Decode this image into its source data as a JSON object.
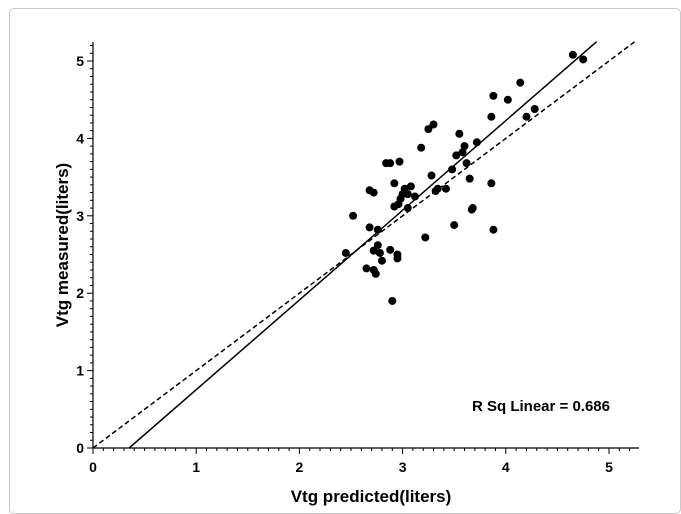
{
  "chart_data": {
    "type": "scatter",
    "xlabel": "Vtg predicted(liters)",
    "ylabel": "Vtg measured(liters)",
    "xlim": [
      0,
      5.25
    ],
    "ylim": [
      0,
      5.25
    ],
    "xticks": [
      "0",
      "1",
      "2",
      "3",
      "4",
      "5"
    ],
    "yticks": [
      "0",
      "1",
      "2",
      "3",
      "4",
      "5"
    ],
    "grid": false,
    "annotation": "R Sq Linear = 0.686",
    "colors": {
      "points": "#000000",
      "lines": "#000000"
    },
    "points": [
      [
        2.45,
        2.52
      ],
      [
        2.52,
        3.0
      ],
      [
        2.65,
        2.32
      ],
      [
        2.68,
        2.85
      ],
      [
        2.68,
        3.33
      ],
      [
        2.72,
        3.3
      ],
      [
        2.72,
        2.3
      ],
      [
        2.72,
        2.55
      ],
      [
        2.74,
        2.25
      ],
      [
        2.76,
        2.82
      ],
      [
        2.76,
        2.62
      ],
      [
        2.78,
        2.52
      ],
      [
        2.8,
        2.42
      ],
      [
        2.84,
        3.68
      ],
      [
        2.88,
        3.68
      ],
      [
        2.88,
        2.56
      ],
      [
        2.9,
        1.9
      ],
      [
        2.92,
        3.42
      ],
      [
        2.92,
        3.12
      ],
      [
        2.95,
        2.45
      ],
      [
        2.95,
        2.5
      ],
      [
        2.96,
        3.15
      ],
      [
        2.97,
        3.7
      ],
      [
        2.98,
        3.22
      ],
      [
        3.0,
        3.28
      ],
      [
        3.02,
        3.35
      ],
      [
        3.05,
        3.1
      ],
      [
        3.05,
        3.28
      ],
      [
        3.08,
        3.38
      ],
      [
        3.12,
        3.25
      ],
      [
        3.18,
        3.88
      ],
      [
        3.22,
        2.72
      ],
      [
        3.25,
        4.12
      ],
      [
        3.28,
        3.52
      ],
      [
        3.3,
        4.18
      ],
      [
        3.32,
        3.32
      ],
      [
        3.34,
        3.35
      ],
      [
        3.42,
        3.35
      ],
      [
        3.48,
        3.6
      ],
      [
        3.5,
        2.88
      ],
      [
        3.52,
        3.78
      ],
      [
        3.55,
        4.06
      ],
      [
        3.58,
        3.82
      ],
      [
        3.6,
        3.9
      ],
      [
        3.62,
        3.68
      ],
      [
        3.65,
        3.48
      ],
      [
        3.67,
        3.08
      ],
      [
        3.68,
        3.1
      ],
      [
        3.72,
        3.95
      ],
      [
        3.86,
        4.28
      ],
      [
        3.86,
        3.42
      ],
      [
        3.88,
        4.55
      ],
      [
        3.88,
        2.82
      ],
      [
        4.02,
        4.5
      ],
      [
        4.14,
        4.72
      ],
      [
        4.2,
        4.28
      ],
      [
        4.28,
        4.38
      ],
      [
        4.65,
        5.08
      ],
      [
        4.75,
        5.02
      ]
    ],
    "lines": [
      {
        "style": "solid",
        "x": [
          0.35,
          4.88
        ],
        "y": [
          0.0,
          5.25
        ]
      },
      {
        "style": "dashed",
        "x": [
          0.0,
          5.25
        ],
        "y": [
          0.0,
          5.25
        ]
      }
    ]
  }
}
